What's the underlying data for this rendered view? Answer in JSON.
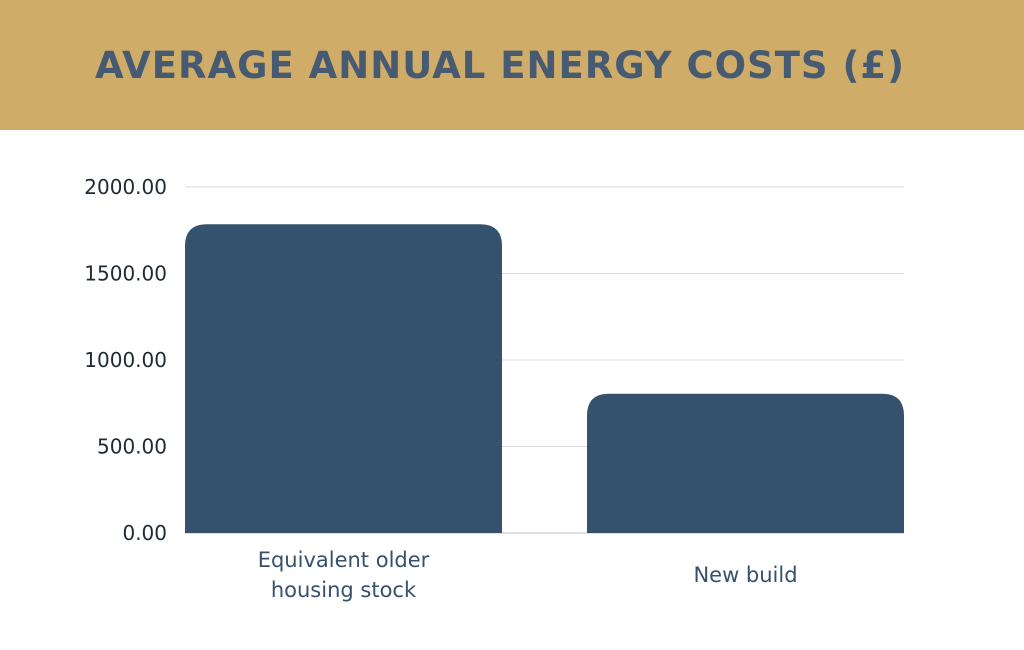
{
  "chart_data": {
    "type": "bar",
    "title": "AVERAGE ANNUAL ENERGY COSTS (£)",
    "categories": [
      [
        "Equivalent older",
        "housing stock"
      ],
      [
        "New build"
      ]
    ],
    "values": [
      1785,
      805
    ],
    "ylim": [
      0,
      2000
    ],
    "yticks": [
      "0.00",
      "500.00",
      "1000.00",
      "1500.00",
      "2000.00"
    ],
    "ytick_values": [
      0,
      500,
      1000,
      1500,
      2000
    ],
    "grid": true,
    "colors": {
      "banner": "#cfad68",
      "title": "#465a72",
      "bar": "#34526e",
      "grid": "#d9d9d9"
    }
  }
}
